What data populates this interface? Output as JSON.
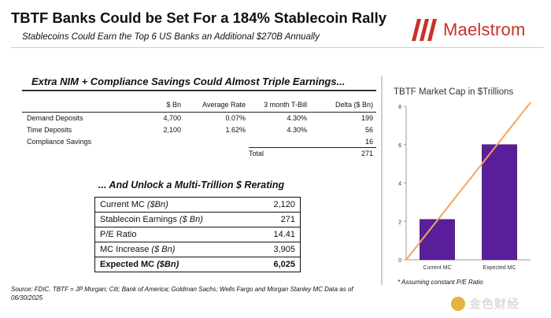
{
  "header": {
    "title": "TBTF Banks Could be Set For a 184% Stablecoin Rally",
    "subtitle": "Stablecoins Could Earn the Top 6 US Banks an Additional $270B Annually",
    "logo_text": "Maelstrom"
  },
  "colors": {
    "brand_red": "#c9302c",
    "bar_purple": "#5b1e9b",
    "line_orange": "#f5a55a"
  },
  "nim": {
    "title": "Extra NIM + Compliance Savings Could Almost Triple Earnings...",
    "headers": [
      "",
      "$ Bn",
      "Average Rate",
      "3 month T-Bill",
      "Delta ($ Bn)"
    ],
    "rows": [
      [
        "Demand Deposits",
        "4,700",
        "0.07%",
        "4.30%",
        "199"
      ],
      [
        "Time Deposits",
        "2,100",
        "1.62%",
        "4.30%",
        "56"
      ],
      [
        "Compliance Savings",
        "",
        "",
        "",
        "16"
      ]
    ],
    "total_label": "Total",
    "total_value": "271"
  },
  "rerate": {
    "title": "... And Unlock a Multi-Trillion $ Rerating",
    "rows": [
      {
        "label": "Current MC",
        "unit": "($Bn)",
        "value": "2,120"
      },
      {
        "label": "Stablecoin Earnings",
        "unit": "($ Bn)",
        "value": "271"
      },
      {
        "label": "P/E Ratio",
        "unit": "",
        "value": "14.41"
      },
      {
        "label": "MC Increase",
        "unit": "($ Bn)",
        "value": "3,905"
      },
      {
        "label": "Expected MC",
        "unit": "($Bn)",
        "value": "6,025"
      }
    ]
  },
  "source": "Source: FDIC. TBTF = JP Morgan; Citi; Bank of America; Goldman Sachs; Wells Fargo and Morgan Stanley MC Data as of 06/30/2025",
  "chart_data": {
    "type": "bar",
    "title": "TBTF Market Cap in $Trillions",
    "categories": [
      "Current MC",
      "Expected MC"
    ],
    "values": [
      2.1,
      6.0
    ],
    "ylim": [
      0,
      8
    ],
    "yticks": [
      "0",
      "2",
      "4",
      "6",
      "8"
    ],
    "grid": false,
    "overlay_line": {
      "x": [
        -0.5,
        1.5
      ],
      "y": [
        0,
        8.2
      ]
    },
    "footnote": "* Assuming constant P/E Ratio"
  },
  "watermark": {
    "text": "金色财经"
  }
}
